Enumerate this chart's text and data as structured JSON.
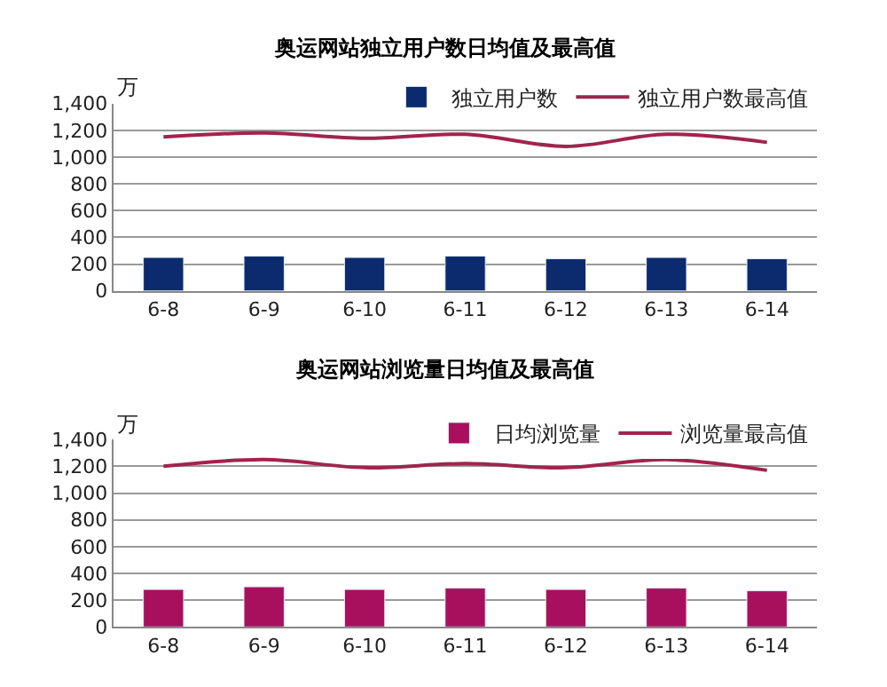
{
  "chart_data": [
    {
      "type": "bar",
      "title": "奥运网站独立用户数日均值及最高值",
      "ylabel": "万",
      "categories": [
        "6-8",
        "6-9",
        "6-10",
        "6-11",
        "6-12",
        "6-13",
        "6-14"
      ],
      "series": [
        {
          "name": "独立用户数",
          "color": "#0c2a6e",
          "values": [
            250,
            260,
            250,
            260,
            240,
            250,
            240
          ]
        },
        {
          "name": "独立用户数最高值",
          "type": "line",
          "color": "#a0244e",
          "values": [
            1150,
            1180,
            1140,
            1170,
            1080,
            1170,
            1110
          ]
        }
      ],
      "ylim": [
        0,
        1400
      ],
      "yticks": [
        0,
        200,
        400,
        600,
        800,
        {
          "value": 1000,
          "label": "1,000"
        },
        {
          "value": 1200,
          "label": "1,200"
        },
        {
          "value": 1400,
          "label": "1,400"
        }
      ],
      "grid": "y",
      "legend": "top right",
      "marker": "none"
    },
    {
      "type": "bar",
      "title": "奥运网站浏览量日均值及最高值",
      "ylabel": "万",
      "categories": [
        "6-8",
        "6-9",
        "6-10",
        "6-11",
        "6-12",
        "6-13",
        "6-14"
      ],
      "series": [
        {
          "name": "日均浏览量",
          "color": "#a8105e",
          "values": [
            280,
            300,
            280,
            290,
            280,
            290,
            270
          ]
        },
        {
          "name": "浏览量最高值",
          "type": "line",
          "color": "#a0244e",
          "values": [
            1200,
            1250,
            1190,
            1220,
            1190,
            1250,
            1170
          ]
        }
      ],
      "ylim": [
        0,
        1400
      ],
      "yticks": [
        0,
        200,
        400,
        600,
        800,
        {
          "value": 1000,
          "label": "1,000"
        },
        {
          "value": 1200,
          "label": "1,200"
        },
        {
          "value": 1400,
          "label": "1,400"
        }
      ],
      "grid": "y",
      "legend": "top right",
      "marker": "none"
    }
  ]
}
